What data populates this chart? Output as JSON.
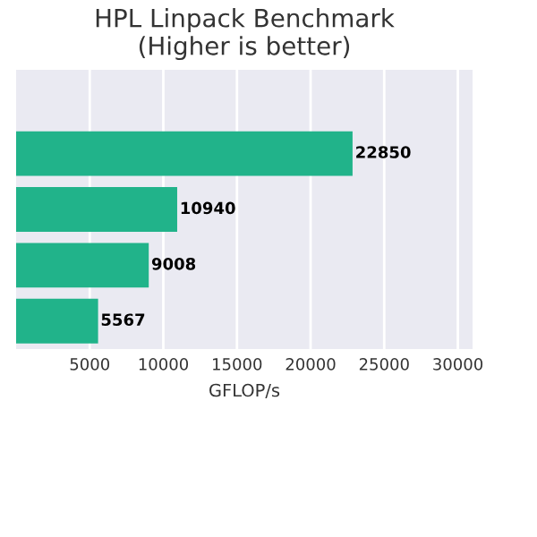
{
  "chart_data": {
    "type": "bar",
    "orientation": "horizontal",
    "title": "HPL Linpack Benchmark\n(Higher is better)",
    "xlabel": "GFLOP/s",
    "categories": [
      null,
      null,
      null,
      null,
      null
    ],
    "values": [
      null,
      22850,
      10940,
      9008,
      5567
    ],
    "color": "#21b38a",
    "data_labels": true,
    "xlim": [
      0,
      31000
    ],
    "xticks": [
      5000,
      10000,
      15000,
      20000,
      25000,
      30000
    ],
    "grid": "x"
  }
}
